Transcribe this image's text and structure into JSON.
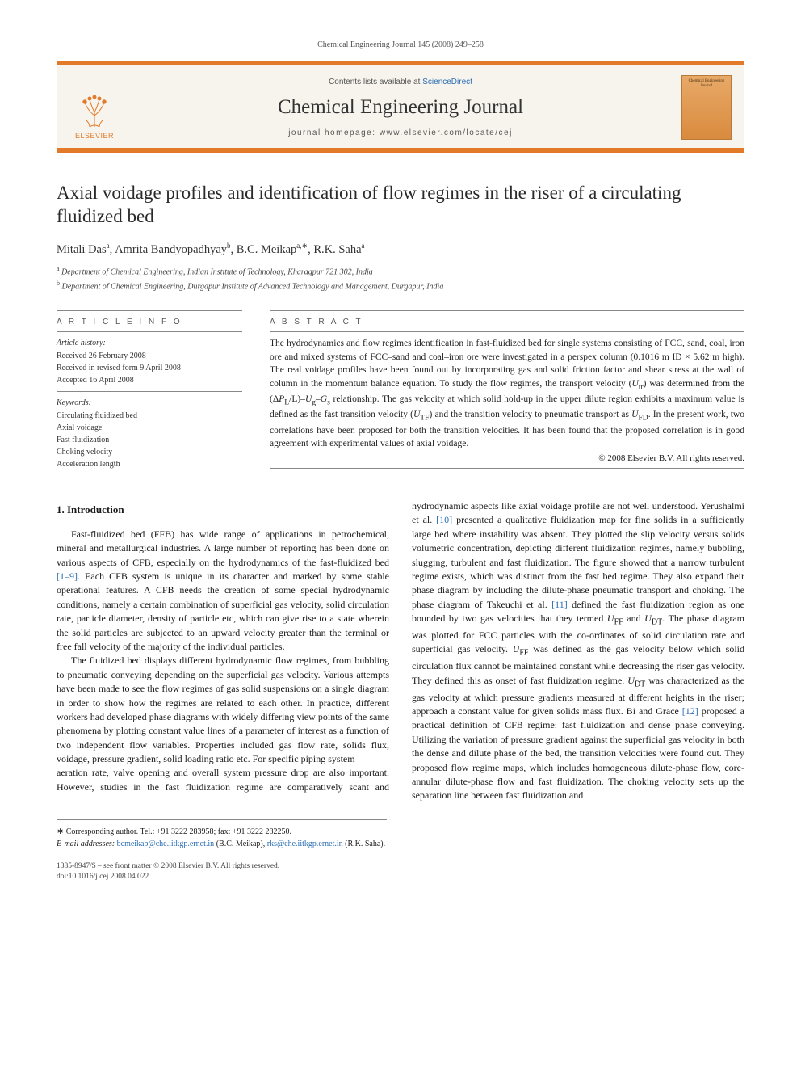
{
  "running_header": "Chemical Engineering Journal 145 (2008) 249–258",
  "header": {
    "contents_prefix": "Contents lists available at ",
    "contents_link": "ScienceDirect",
    "journal_name": "Chemical Engineering Journal",
    "homepage_prefix": "journal homepage: ",
    "homepage_url": "www.elsevier.com/locate/cej",
    "publisher": "ELSEVIER",
    "cover_text": "Chemical Engineering Journal"
  },
  "title": "Axial voidage profiles and identification of flow regimes in the riser of a circulating fluidized bed",
  "authors_html": "Mitali Das<sup>a</sup>, Amrita Bandyopadhyay<sup>b</sup>, B.C. Meikap<sup>a,∗</sup>, R.K. Saha<sup>a</sup>",
  "affiliations": [
    {
      "sup": "a",
      "text": "Department of Chemical Engineering, Indian Institute of Technology, Kharagpur 721 302, India"
    },
    {
      "sup": "b",
      "text": "Department of Chemical Engineering, Durgapur Institute of Advanced Technology and Management, Durgapur, India"
    }
  ],
  "labels": {
    "article_info": "A R T I C L E   I N F O",
    "abstract": "A B S T R A C T"
  },
  "history": {
    "head": "Article history:",
    "received": "Received 26 February 2008",
    "revised": "Received in revised form 9 April 2008",
    "accepted": "Accepted 16 April 2008"
  },
  "keywords": {
    "head": "Keywords:",
    "items": [
      "Circulating fluidized bed",
      "Axial voidage",
      "Fast fluidization",
      "Choking velocity",
      "Acceleration length"
    ]
  },
  "abstract": "The hydrodynamics and flow regimes identification in fast-fluidized bed for single systems consisting of FCC, sand, coal, iron ore and mixed systems of FCC–sand and coal–iron ore were investigated in a perspex column (0.1016 m ID × 5.62 m high). The real voidage profiles have been found out by incorporating gas and solid friction factor and shear stress at the wall of column in the momentum balance equation. To study the flow regimes, the transport velocity (Uₜᵣ) was determined from the (ΔPₗ/L)–Uₛ–Gₛ relationship. The gas velocity at which solid hold-up in the upper dilute region exhibits a maximum value is defined as the fast transition velocity (U_TF) and the transition velocity to pneumatic transport as U_FD. In the present work, two correlations have been proposed for both the transition velocities. It has been found that the proposed correlation is in good agreement with experimental values of axial voidage.",
  "copyright": "© 2008 Elsevier B.V. All rights reserved.",
  "section1_heading": "1.  Introduction",
  "para1": "Fast-fluidized bed (FFB) has wide range of applications in petrochemical, mineral and metallurgical industries. A large number of reporting has been done on various aspects of CFB, especially on the hydrodynamics of the fast-fluidized bed [1–9]. Each CFB system is unique in its character and marked by some stable operational features. A CFB needs the creation of some special hydrodynamic conditions, namely a certain combination of superficial gas velocity, solid circulation rate, particle diameter, density of particle etc, which can give rise to a state wherein the solid particles are subjected to an upward velocity greater than the terminal or free fall velocity of the majority of the individual particles.",
  "para2": "The fluidized bed displays different hydrodynamic flow regimes, from bubbling to pneumatic conveying depending on the superficial gas velocity. Various attempts have been made to see the flow regimes of gas solid suspensions on a single diagram in order to show how the regimes are related to each other. In practice, different workers had developed phase diagrams with widely differing view points of the same phenomena by plotting constant value lines of a parameter of interest as a function of two independent flow variables. Properties included gas flow rate, solids flux, voidage, pressure gradient, solid loading ratio etc. For specific piping system",
  "para3": "aeration rate, valve opening and overall system pressure drop are also important. However, studies in the fast fluidization regime are comparatively scant and hydrodynamic aspects like axial voidage profile are not well understood. Yerushalmi et al. [10] presented a qualitative fluidization map for fine solids in a sufficiently large bed where instability was absent. They plotted the slip velocity versus solids volumetric concentration, depicting different fluidization regimes, namely bubbling, slugging, turbulent and fast fluidization. The figure showed that a narrow turbulent regime exists, which was distinct from the fast bed regime. They also expand their phase diagram by including the dilute-phase pneumatic transport and choking. The phase diagram of Takeuchi et al. [11] defined the fast fluidization region as one bounded by two gas velocities that they termed U_FF and U_DT. The phase diagram was plotted for FCC particles with the co-ordinates of solid circulation rate and superficial gas velocity. U_FF was defined as the gas velocity below which solid circulation flux cannot be maintained constant while decreasing the riser gas velocity. They defined this as onset of fast fluidization regime. U_DT was characterized as the gas velocity at which pressure gradients measured at different heights in the riser; approach a constant value for given solids mass flux. Bi and Grace [12] proposed a practical definition of CFB regime: fast fluidization and dense phase conveying. Utilizing the variation of pressure gradient against the superficial gas velocity in both the dense and dilute phase of the bed, the transition velocities were found out. They proposed flow regime maps, which includes homogeneous dilute-phase flow, core-annular dilute-phase flow and fast fluidization. The choking velocity sets up the separation line between fast fluidization and",
  "corresponding": {
    "label": "∗ Corresponding author. Tel.: +91 3222 283958; fax: +91 3222 282250.",
    "email_label": "E-mail addresses:",
    "email1": "bcmeikap@che.iitkgp.ernet.in",
    "email1_name": " (B.C. Meikap), ",
    "email2": "rks@che.iitkgp.ernet.in",
    "email2_name": " (R.K. Saha)."
  },
  "footer": {
    "line1": "1385-8947/$ – see front matter © 2008 Elsevier B.V. All rights reserved.",
    "line2": "doi:10.1016/j.cej.2008.04.022"
  },
  "refs": {
    "r1_9": "[1–9]",
    "r10": "[10]",
    "r11": "[11]",
    "r12": "[12]"
  }
}
